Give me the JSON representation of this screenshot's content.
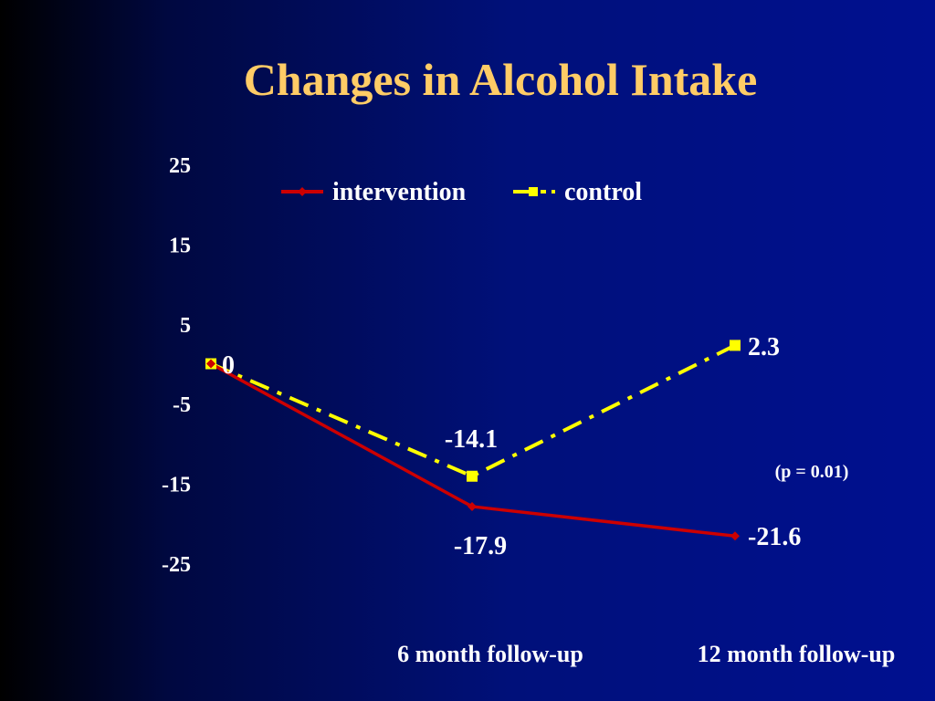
{
  "slide": {
    "title": "Changes in Alcohol Intake"
  },
  "chart_data": {
    "type": "line",
    "title": "Changes in Alcohol Intake",
    "categories": [
      "",
      "6 month follow-up",
      "12 month follow-up"
    ],
    "y_ticks": [
      "25",
      "15",
      "5",
      "-5",
      "-15",
      "-25"
    ],
    "ylim": [
      -25,
      25
    ],
    "series": [
      {
        "name": "intervention",
        "values": [
          0,
          -17.9,
          -21.6
        ],
        "labels": [
          "",
          "-17.9",
          "-21.6"
        ],
        "color": "#cc0000",
        "marker": "diamond",
        "dash": "solid"
      },
      {
        "name": "control",
        "values": [
          0,
          -14.1,
          2.3
        ],
        "labels": [
          "0",
          "-14.1",
          "2.3"
        ],
        "color": "#ffff00",
        "marker": "square",
        "dash": "dash-dot"
      }
    ],
    "annotation": "(p = 0.01)",
    "legend_position": "top",
    "grid": false
  }
}
